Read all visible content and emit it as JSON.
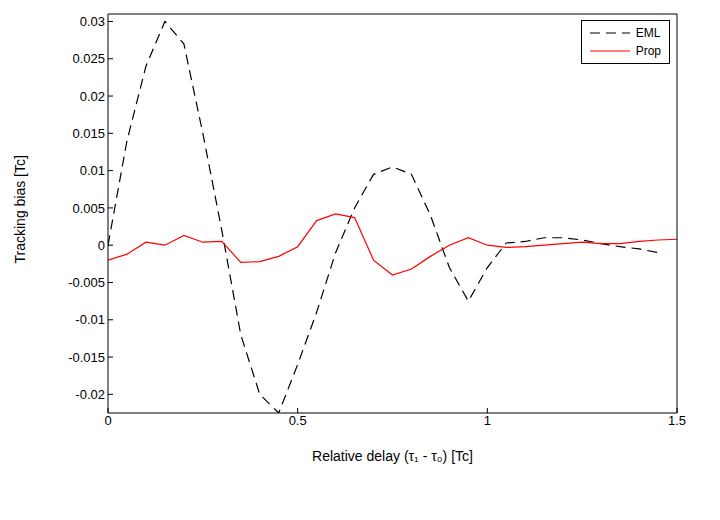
{
  "chart_data": {
    "type": "line",
    "x_label": "Relative delay (τ₁ - τ₀) [Tc]",
    "y_label": "Tracking bias [Tc]",
    "x": [
      0,
      0.05,
      0.1,
      0.15,
      0.2,
      0.25,
      0.3,
      0.35,
      0.4,
      0.45,
      0.5,
      0.55,
      0.6,
      0.65,
      0.7,
      0.75,
      0.8,
      0.85,
      0.9,
      0.95,
      1.0,
      1.05,
      1.1,
      1.15,
      1.2,
      1.25,
      1.3,
      1.35,
      1.4,
      1.45,
      1.5
    ],
    "series": [
      {
        "name": "EML",
        "color": "#000000",
        "line_style": "dashed",
        "values": [
          0,
          0.014,
          0.024,
          0.03,
          0.027,
          0.015,
          0.002,
          -0.012,
          -0.02,
          -0.0225,
          -0.016,
          -0.009,
          -0.001,
          0.005,
          0.0095,
          0.0105,
          0.0095,
          0.004,
          -0.003,
          -0.0075,
          -0.003,
          0.0003,
          0.0005,
          0.001,
          0.001,
          0.0007,
          0.0002,
          -0.0002,
          -0.0005,
          -0.001,
          null
        ]
      },
      {
        "name": "Prop",
        "color": "#ff0000",
        "line_style": "solid",
        "values": [
          -0.002,
          -0.0012,
          0.0004,
          0,
          0.0013,
          0.0004,
          0.0005,
          -0.0023,
          -0.0022,
          -0.0015,
          -0.0002,
          0.0033,
          0.0042,
          0.0037,
          -0.002,
          -0.004,
          -0.0032,
          -0.0015,
          0,
          0.001,
          0,
          -0.0003,
          -0.0002,
          0,
          0.0002,
          0.0004,
          0.0002,
          0.0002,
          0.0005,
          0.0007,
          0.0008
        ]
      }
    ],
    "xlim": [
      0,
      1.5
    ],
    "xticks": [
      0,
      0.5,
      1,
      1.5
    ],
    "ylim": [
      -0.0225,
      0.031
    ],
    "yticks": [
      -0.02,
      -0.015,
      -0.01,
      -0.005,
      0,
      0.005,
      0.01,
      0.015,
      0.02,
      0.025,
      0.03
    ],
    "legend": "upper right",
    "grid": false
  }
}
